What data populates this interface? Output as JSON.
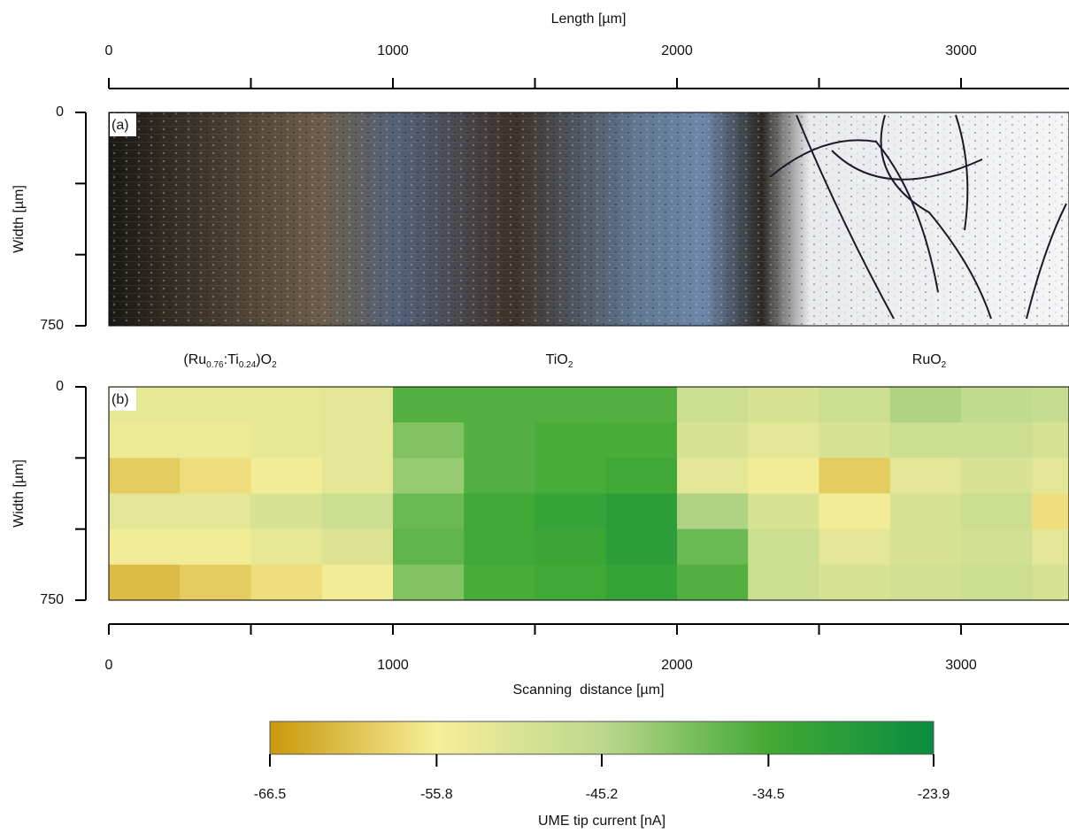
{
  "chart_data": [
    {
      "type": "image",
      "title": "Length [µm]",
      "panel_label": "(a)",
      "xlim": [
        0,
        3380
      ],
      "xticks": [
        0,
        1000,
        2000,
        3000
      ],
      "xminorticks": [
        500,
        1500,
        2500
      ],
      "ylabel": "Width [µm]",
      "ylim": [
        0,
        750
      ],
      "yticks": [
        0,
        750
      ],
      "yminorticks": [
        250,
        500
      ],
      "annotations": [
        [
          {
            "text": "(Ru"
          },
          {
            "text": "0.76",
            "sub": true
          },
          {
            "text": ":Ti"
          },
          {
            "text": "0.24",
            "sub": true
          },
          {
            "text": ")O"
          },
          {
            "text": "2",
            "sub": true
          }
        ],
        [
          {
            "text": "TiO"
          },
          {
            "text": "2",
            "sub": true
          }
        ],
        [
          {
            "text": "RuO"
          },
          {
            "text": "2",
            "sub": true
          }
        ]
      ]
    },
    {
      "type": "heatmap",
      "panel_label": "(b)",
      "xlabel": "Scanning  distance [µm]",
      "xlim": [
        0,
        3380
      ],
      "xticks": [
        0,
        1000,
        2000,
        3000
      ],
      "xminorticks": [
        500,
        1500,
        2500
      ],
      "ylabel": "Width [µm]",
      "ylim": [
        0,
        750
      ],
      "yticks": [
        0,
        750
      ],
      "yminorticks": [
        250,
        500
      ],
      "xbins": [
        0,
        250,
        500,
        750,
        1000,
        1250,
        1500,
        1750,
        2000,
        2250,
        2500,
        2750,
        3000,
        3250,
        3380
      ],
      "ybins": [
        0,
        125,
        250,
        375,
        500,
        625,
        750
      ],
      "values": [
        [
          -53,
          -53,
          -53,
          -52,
          -36,
          -36,
          -36,
          -36,
          -48,
          -50,
          -48,
          -44,
          -46,
          -47
        ],
        [
          -54,
          -54,
          -53,
          -52,
          -40,
          -36,
          -35,
          -35,
          -50,
          -52,
          -50,
          -48,
          -48,
          -50
        ],
        [
          -60,
          -58,
          -55,
          -52,
          -42,
          -36,
          -35,
          -34,
          -52,
          -55,
          -60,
          -52,
          -50,
          -52
        ],
        [
          -52,
          -52,
          -50,
          -48,
          -38,
          -34,
          -32,
          -30,
          -44,
          -50,
          -55,
          -50,
          -48,
          -58
        ],
        [
          -55,
          -55,
          -53,
          -51,
          -37,
          -34,
          -33,
          -30,
          -38,
          -48,
          -52,
          -50,
          -49,
          -52
        ],
        [
          -62,
          -60,
          -58,
          -55,
          -40,
          -35,
          -34,
          -32,
          -36,
          -48,
          -50,
          -49,
          -48,
          -50
        ]
      ],
      "colorbar": {
        "label": "UME tip current [nA]",
        "lim": [
          -66.5,
          -23.9
        ],
        "ticks": [
          -66.5,
          -55.8,
          -45.2,
          -34.5,
          -23.9
        ],
        "colors": [
          "#c9980c",
          "#f7ee98",
          "#bcd88f",
          "#43aa34",
          "#0a8c40"
        ]
      }
    }
  ]
}
